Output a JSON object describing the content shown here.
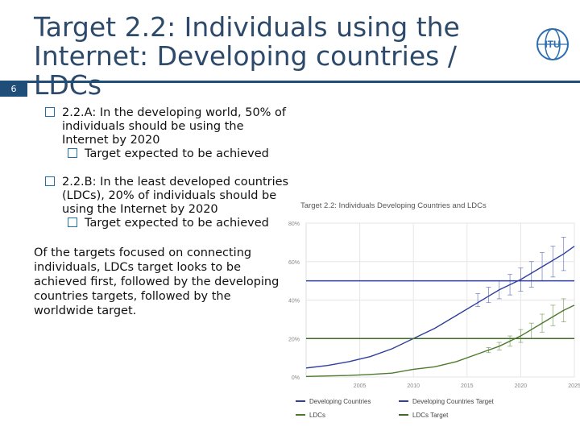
{
  "slide": {
    "title_line1": "Target 2.2: Individuals using the",
    "title_line2": "Internet: Developing countries / LDCs",
    "number": "6",
    "logo_text": "ITU"
  },
  "bullets": [
    {
      "lines": [
        "2.2.A: In the developing world, 50% of",
        "individuals should be using the",
        "Internet by 2020"
      ],
      "sub": "Target expected to be achieved"
    },
    {
      "lines": [
        "2.2.B: In the least developed countries",
        "(LDCs), 20% of individuals should be",
        "using the Internet by 2020"
      ],
      "sub": "Target expected to be achieved"
    }
  ],
  "paragraph": "Of the targets focused on connecting individuals, LDCs target looks to be achieved first, followed by the developing countries targets, followed by the worldwide target.",
  "chart_data": {
    "type": "line",
    "title": "Target 2.2: Individuals Developing Countries and LDCs",
    "xlabel": "",
    "ylabel": "",
    "xlim": [
      2000,
      2025
    ],
    "ylim": [
      0,
      60
    ],
    "x_ticks": [
      "2005",
      "2010",
      "2015",
      "2020",
      "2025"
    ],
    "y_ticks": [
      "0%",
      "20%",
      "40%",
      "60%",
      "80%"
    ],
    "y_tick_values": [
      0,
      15,
      30,
      45,
      60
    ],
    "grid": true,
    "legend_position": "bottom",
    "series": [
      {
        "name": "Developing Countries",
        "color": "#2f3f9e",
        "x": [
          2000,
          2002,
          2004,
          2006,
          2008,
          2010,
          2012,
          2014,
          2016,
          2018,
          2020,
          2022,
          2024,
          2025
        ],
        "y": [
          3.5,
          4.5,
          6,
          8,
          11,
          15,
          19,
          24,
          29,
          34,
          38,
          43,
          48,
          51
        ]
      },
      {
        "name": "LDCs",
        "color": "#4d7a2c",
        "x": [
          2000,
          2002,
          2004,
          2006,
          2008,
          2010,
          2012,
          2014,
          2016,
          2018,
          2020,
          2022,
          2024,
          2025
        ],
        "y": [
          0.2,
          0.4,
          0.6,
          1,
          1.5,
          3,
          4,
          6,
          9,
          12,
          16,
          21,
          26,
          28
        ]
      },
      {
        "name": "Developing Countries Target",
        "color": "#2f3f9e",
        "x": [
          2000,
          2025
        ],
        "y": [
          37.5,
          37.5
        ]
      },
      {
        "name": "LDCs Target",
        "color": "#3f6b26",
        "x": [
          2000,
          2025
        ],
        "y": [
          15,
          15
        ]
      }
    ],
    "error_bars": [
      {
        "series": "Developing Countries",
        "x": [
          2016,
          2017,
          2018,
          2019,
          2020,
          2021,
          2022,
          2023,
          2024
        ],
        "y": [
          30,
          32,
          34,
          36,
          38,
          40,
          43,
          45,
          48
        ],
        "err": [
          2.5,
          3,
          3.5,
          4,
          4.5,
          5,
          5.5,
          6,
          6.5
        ]
      },
      {
        "series": "LDCs",
        "x": [
          2017,
          2018,
          2019,
          2020,
          2021,
          2022,
          2023,
          2024
        ],
        "y": [
          10.5,
          12,
          14,
          16,
          18,
          21,
          24,
          26
        ],
        "err": [
          1,
          1.5,
          2,
          2.5,
          3,
          3.5,
          4,
          4.5
        ]
      }
    ]
  }
}
